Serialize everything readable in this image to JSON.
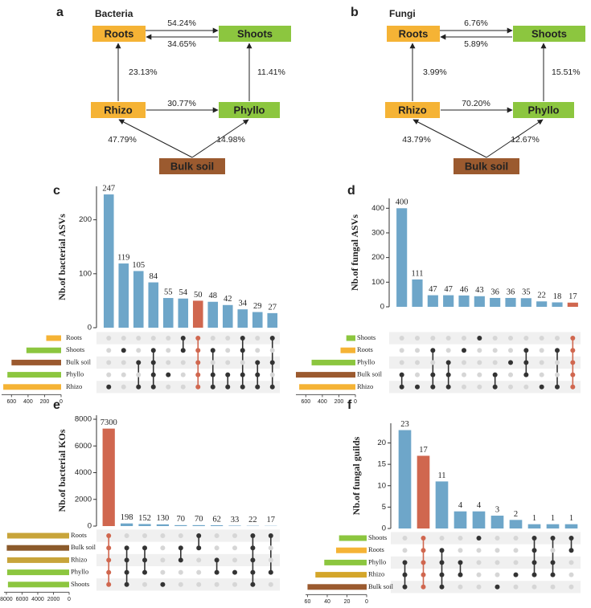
{
  "diagrams": [
    {
      "letter": "a",
      "title": "Bacteria",
      "nodes": [
        {
          "label": "Roots",
          "color": "#f5b335"
        },
        {
          "label": "Shoots",
          "color": "#8cc63f"
        },
        {
          "label": "Rhizo",
          "color": "#f5b335"
        },
        {
          "label": "Phyllo",
          "color": "#8cc63f"
        },
        {
          "label": "Bulk soil",
          "color": "#9b5a2f"
        }
      ],
      "edges": [
        {
          "label": "54.24%"
        },
        {
          "label": "34.65%"
        },
        {
          "label": "23.13%"
        },
        {
          "label": "11.41%"
        },
        {
          "label": "30.77%"
        },
        {
          "label": "47.79%"
        },
        {
          "label": "14.98%"
        }
      ]
    },
    {
      "letter": "b",
      "title": "Fungi",
      "nodes": [
        {
          "label": "Roots",
          "color": "#f5b335"
        },
        {
          "label": "Shoots",
          "color": "#8cc63f"
        },
        {
          "label": "Rhizo",
          "color": "#f5b335"
        },
        {
          "label": "Phyllo",
          "color": "#8cc63f"
        },
        {
          "label": "Bulk soil",
          "color": "#9b5a2f"
        }
      ],
      "edges": [
        {
          "label": "6.76%"
        },
        {
          "label": "5.89%"
        },
        {
          "label": "3.99%"
        },
        {
          "label": "15.51%"
        },
        {
          "label": "70.20%"
        },
        {
          "label": "43.79%"
        },
        {
          "label": "12.67%"
        }
      ]
    }
  ],
  "chart_data": [
    {
      "type": "upset",
      "letter": "c",
      "ylabel": "Nb.of bacterial ASVs",
      "values": [
        247,
        119,
        105,
        84,
        55,
        54,
        50,
        48,
        42,
        34,
        29,
        27
      ],
      "color": "#6ea6c9",
      "highlight_color": "#d0674f",
      "highlight": 6,
      "ylim": [
        0,
        262
      ],
      "yticks": [
        0,
        100,
        200
      ],
      "sets": [
        "Roots",
        "Shoots",
        "Bulk soil",
        "Phyllo",
        "Rhizo"
      ],
      "set_colors": [
        "#f5b335",
        "#8cc63f",
        "#9b5a2f",
        "#8cc63f",
        "#f5b335"
      ],
      "set_sizes": [
        180,
        420,
        600,
        650,
        700
      ],
      "xlim": [
        0,
        720
      ],
      "xticks": [
        600,
        400,
        200,
        0
      ],
      "membership": [
        [
          4
        ],
        [
          1
        ],
        [
          2,
          4
        ],
        [
          1,
          2,
          3,
          4
        ],
        [
          3
        ],
        [
          0,
          1
        ],
        [
          0,
          1,
          2,
          3,
          4
        ],
        [
          1,
          3,
          4
        ],
        [
          3,
          4
        ],
        [
          0,
          1,
          3,
          4
        ],
        [
          2,
          3,
          4
        ],
        [
          0,
          2,
          4
        ]
      ]
    },
    {
      "type": "upset",
      "letter": "d",
      "ylabel": "Nb.of fungal ASVs",
      "values": [
        400,
        111,
        47,
        47,
        46,
        43,
        36,
        36,
        35,
        22,
        18,
        17
      ],
      "color": "#6ea6c9",
      "highlight_color": "#d0674f",
      "highlight": 11,
      "ylim": [
        0,
        440
      ],
      "yticks": [
        0,
        100,
        200,
        300,
        400
      ],
      "sets": [
        "Shoots",
        "Roots",
        "Phyllo",
        "Bulk soil",
        "Rhizo"
      ],
      "set_colors": [
        "#8cc63f",
        "#f5b335",
        "#8cc63f",
        "#9b5a2f",
        "#f5b335"
      ],
      "set_sizes": [
        110,
        180,
        530,
        720,
        680
      ],
      "xlim": [
        0,
        720
      ],
      "xticks": [
        600,
        400,
        200,
        0
      ],
      "membership": [
        [
          3,
          4
        ],
        [
          4
        ],
        [
          1,
          3,
          4
        ],
        [
          2,
          3,
          4
        ],
        [
          1
        ],
        [
          0
        ],
        [
          3,
          4
        ],
        [
          2
        ],
        [
          1,
          2,
          3
        ],
        [
          4
        ],
        [
          1,
          4
        ],
        [
          0,
          1,
          2,
          3,
          4
        ]
      ]
    },
    {
      "type": "upset",
      "letter": "e",
      "ylabel": "Nb.of bacterial KOs",
      "values": [
        7300,
        198,
        152,
        130,
        70,
        70,
        62,
        33,
        22,
        17
      ],
      "color": "#6ea6c9",
      "highlight_color": "#d0674f",
      "highlight": 0,
      "ylim": [
        0,
        8300
      ],
      "yticks": [
        0,
        2000,
        4000,
        6000,
        8000
      ],
      "sets": [
        "Roots",
        "Bulk soil",
        "Rhizo",
        "Phyllo",
        "Shoots"
      ],
      "set_colors": [
        "#c8a43a",
        "#8b5a2b",
        "#c8a43a",
        "#8cc63f",
        "#8cc63f"
      ],
      "set_sizes": [
        7900,
        7950,
        7900,
        7900,
        7800
      ],
      "xlim": [
        0,
        8300
      ],
      "xticks": [
        8000,
        6000,
        4000,
        2000,
        0
      ],
      "membership": [
        [
          0,
          1,
          2,
          3,
          4
        ],
        [
          1,
          2,
          3,
          4
        ],
        [
          1,
          2,
          3
        ],
        [
          4
        ],
        [
          1,
          2
        ],
        [
          0,
          1
        ],
        [
          2,
          3
        ],
        [
          3
        ],
        [
          0,
          1,
          2,
          3,
          4
        ],
        [
          0,
          3
        ]
      ]
    },
    {
      "type": "upset",
      "letter": "f",
      "ylabel": "Nb.of fungal guilds",
      "values": [
        23,
        17,
        11,
        4,
        4,
        3,
        2,
        1,
        1,
        1
      ],
      "color": "#6ea6c9",
      "highlight_color": "#d0674f",
      "highlight": 1,
      "ylim": [
        0,
        24.6
      ],
      "yticks": [
        0,
        5,
        10,
        15,
        20
      ],
      "sets": [
        "Shoots",
        "Roots",
        "Phyllo",
        "Rhizo",
        "Bulk soil"
      ],
      "set_colors": [
        "#8cc63f",
        "#f5b335",
        "#8cc63f",
        "#d4a62a",
        "#9b5a2f"
      ],
      "set_sizes": [
        28,
        31,
        43,
        52,
        60
      ],
      "xlim": [
        0,
        62
      ],
      "xticks": [
        60,
        40,
        20,
        0
      ],
      "membership": [
        [
          2,
          3,
          4
        ],
        [
          0,
          1,
          2,
          3,
          4
        ],
        [
          1,
          2,
          3,
          4
        ],
        [
          2,
          3
        ],
        [
          0
        ],
        [
          4
        ],
        [
          3
        ],
        [
          0,
          1,
          2,
          3
        ],
        [
          0,
          2,
          3
        ],
        [
          0,
          1
        ]
      ]
    }
  ]
}
